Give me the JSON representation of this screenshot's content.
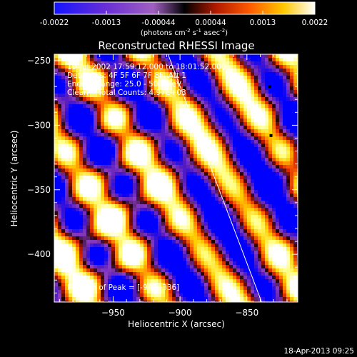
{
  "chart_data": {
    "type": "heatmap",
    "title": "Reconstructed RHESSI Image",
    "colorbar": {
      "ticks": [
        "-0.0022",
        "-0.0013",
        "-0.00044",
        "0.00044",
        "0.0013",
        "0.0022"
      ],
      "range": [
        -0.0022,
        0.0022
      ],
      "units_prefix": "(photons cm",
      "units_sup1": "-2",
      "units_mid": " s",
      "units_sup2": "-1",
      "units_mid2": " asec",
      "units_sup3": "-2",
      "units_suffix": ")"
    },
    "xlabel": "Heliocentric X (arcsec)",
    "ylabel": "Heliocentric Y (arcsec)",
    "xlim": [
      -994,
      -812
    ],
    "ylim": [
      -437,
      -245
    ],
    "xticks": [
      -950,
      -900,
      -850
    ],
    "yticks": [
      -250,
      -300,
      -350,
      -400
    ],
    "colormap": [
      "#0000ff",
      "#5a1fbf",
      "#8c3dbf",
      "#1a0000",
      "#d21d00",
      "#ff6a00",
      "#ffd000",
      "#ffff80",
      "#ffffff"
    ],
    "fringe_pattern": {
      "kx": 0.062,
      "ky": -0.041,
      "mod_kx": 0.048,
      "mod_ky": 0.09,
      "offset": 0.15
    },
    "peaks": [
      {
        "x": -833,
        "y": -270,
        "kind": "min"
      },
      {
        "x": -832,
        "y": -308,
        "kind": "min"
      }
    ],
    "limb_line": [
      [
        -909,
        -245
      ],
      [
        -839,
        -437
      ]
    ],
    "annotations": [
      "19-Jul-2002 17:59:12.000 to 18:01:52.000",
      "Detectors: 4F 5F 6F 7F 8F, Att 1",
      "Energy Range: 25.0 - 50.0 keV",
      "Clean    Total Counts: 4.97E+03"
    ],
    "peak_label": "Position of Peak = [-949,-336]"
  },
  "timestamp": "18-Apr-2013 09:25"
}
